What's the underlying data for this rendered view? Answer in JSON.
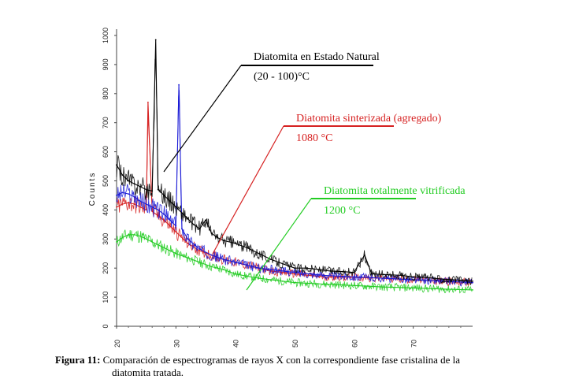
{
  "chart_data": {
    "type": "line",
    "title": "",
    "xlabel": "",
    "ylabel": "Counts",
    "xlim": [
      20,
      80
    ],
    "ylim": [
      0,
      1000
    ],
    "x_ticks": [
      "20",
      "30",
      "40",
      "50",
      "60",
      "70"
    ],
    "y_ticks": [
      "0",
      "100",
      "200",
      "300",
      "400",
      "500",
      "600",
      "700",
      "800",
      "900",
      "1000"
    ],
    "grid": false,
    "series": [
      {
        "name": "Diatomita en Estado Natural",
        "color": "#000000",
        "x": [
          20,
          21,
          22,
          23,
          24,
          25,
          26,
          26.6,
          27,
          28,
          29,
          30,
          31,
          32,
          33,
          34,
          35,
          36,
          37,
          38,
          40,
          42,
          44,
          46,
          48,
          50,
          52,
          54,
          56,
          58,
          60,
          61.8,
          63,
          65,
          68,
          70,
          72,
          75,
          78,
          80
        ],
        "y": [
          555,
          520,
          500,
          490,
          480,
          470,
          465,
          985,
          470,
          450,
          430,
          410,
          390,
          370,
          350,
          335,
          365,
          320,
          305,
          295,
          285,
          270,
          250,
          230,
          215,
          200,
          200,
          195,
          190,
          188,
          185,
          245,
          180,
          178,
          175,
          170,
          168,
          162,
          158,
          155
        ]
      },
      {
        "name": "Diatomita sinterizada (agregado)",
        "color": "#d62020",
        "x": [
          20,
          21,
          22,
          23,
          24,
          25,
          25.3,
          26,
          27,
          28,
          29,
          30,
          32,
          34,
          36,
          38,
          40,
          42,
          44,
          46,
          48,
          50,
          55,
          60,
          65,
          70,
          75,
          80
        ],
        "y": [
          410,
          420,
          425,
          420,
          410,
          400,
          770,
          395,
          380,
          365,
          345,
          325,
          285,
          260,
          245,
          230,
          220,
          210,
          200,
          190,
          185,
          180,
          170,
          168,
          165,
          160,
          155,
          150
        ]
      },
      {
        "name": "",
        "color": "#1a1ad6",
        "x": [
          20,
          21,
          22,
          23,
          24,
          25,
          26,
          27,
          28,
          29,
          30,
          30.5,
          31,
          32,
          34,
          36,
          38,
          40,
          42,
          44,
          46,
          48,
          50,
          55,
          60,
          65,
          70,
          75,
          80
        ],
        "y": [
          450,
          460,
          455,
          445,
          430,
          420,
          410,
          400,
          385,
          365,
          345,
          830,
          335,
          300,
          265,
          245,
          230,
          220,
          210,
          200,
          195,
          190,
          185,
          175,
          170,
          165,
          160,
          155,
          150
        ]
      },
      {
        "name": "Diatomita totalmente vitrificada",
        "color": "#22cc22",
        "x": [
          20,
          21,
          22,
          23,
          24,
          25,
          26,
          27,
          28,
          29,
          30,
          32,
          34,
          36,
          38,
          40,
          42,
          44,
          46,
          48,
          50,
          55,
          60,
          65,
          70,
          75,
          80
        ],
        "y": [
          290,
          305,
          315,
          315,
          310,
          300,
          290,
          280,
          270,
          260,
          250,
          235,
          220,
          205,
          195,
          180,
          172,
          165,
          160,
          155,
          150,
          145,
          140,
          135,
          132,
          128,
          125
        ]
      }
    ],
    "annotations": [
      {
        "lines": [
          "Diatomita en Estado Natural",
          "(20 - 100)°C"
        ],
        "color": "#000000"
      },
      {
        "lines": [
          "Diatomita sinterizada (agregado)",
          "1080 °C"
        ],
        "color": "#d62020"
      },
      {
        "lines": [
          "Diatomita totalmente vitrificada",
          "1200 °C"
        ],
        "color": "#22cc22"
      }
    ]
  },
  "caption": {
    "label": "Figura 11:",
    "line1": "Comparación de espectrogramas de rayos X con la correspondiente fase cristalina de la",
    "line2": "diatomita tratada."
  }
}
